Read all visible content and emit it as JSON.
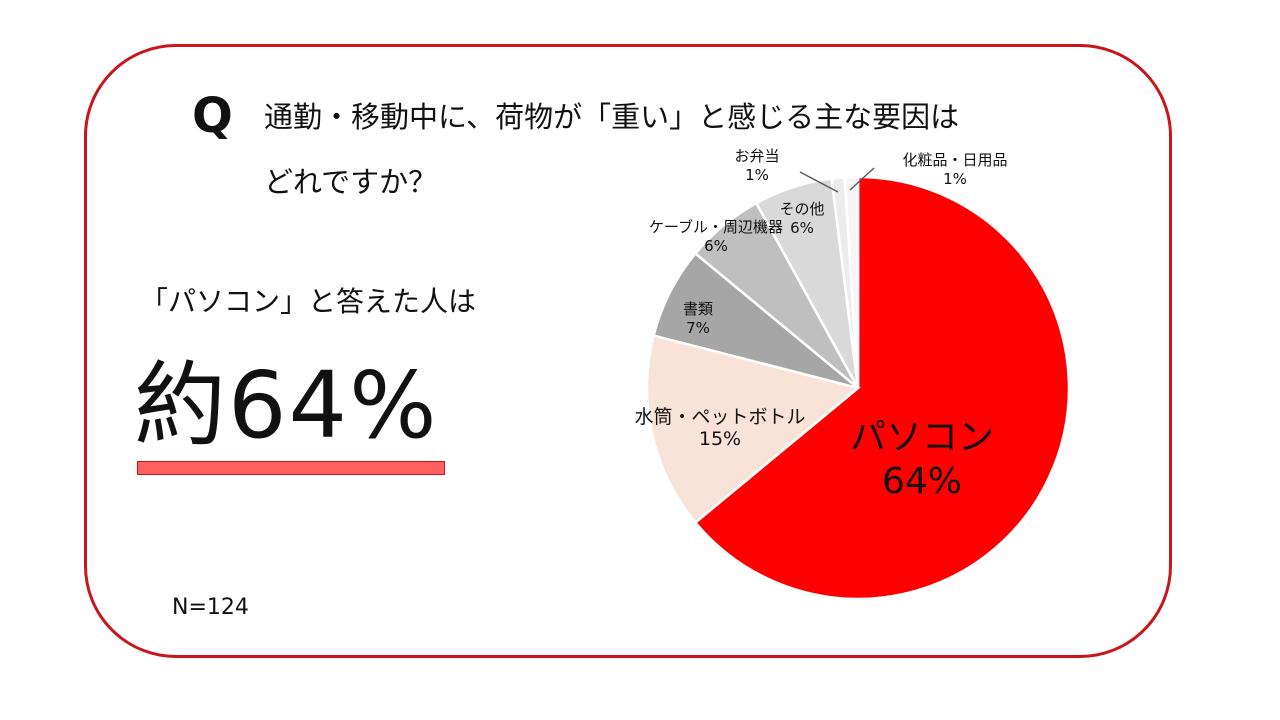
{
  "question": {
    "mark": "Q",
    "line1": "通勤・移動中に、荷物が「重い」と感じる主な要因は",
    "line2": "どれですか？"
  },
  "highlight": {
    "lead": "「パソコン」と答えた人は",
    "value": "約64%"
  },
  "sample": "N=124",
  "colors": {
    "frame": "#c8161d",
    "accent": "#ff0000",
    "underline": "#ff6060"
  },
  "chart_data": {
    "type": "pie",
    "title": "通勤・移動中に、荷物が「重い」と感じる主な要因はどれですか？",
    "n": 124,
    "start_angle": "12 o'clock, clockwise",
    "categories": [
      "パソコン",
      "水筒・ペットボトル",
      "書類",
      "ケーブル・周辺機器",
      "その他",
      "お弁当",
      "化粧品・日用品"
    ],
    "values": [
      64,
      15,
      7,
      6,
      6,
      1,
      1
    ],
    "labels": [
      "64%",
      "15%",
      "7%",
      "6%",
      "6%",
      "1%",
      "1%"
    ],
    "colors": [
      "#ff0000",
      "#f9e3d8",
      "#a6a6a6",
      "#bfbfbf",
      "#d9d9d9",
      "#ececec",
      "#f5f5f5"
    ],
    "legend": "none (data labels on slices)"
  }
}
